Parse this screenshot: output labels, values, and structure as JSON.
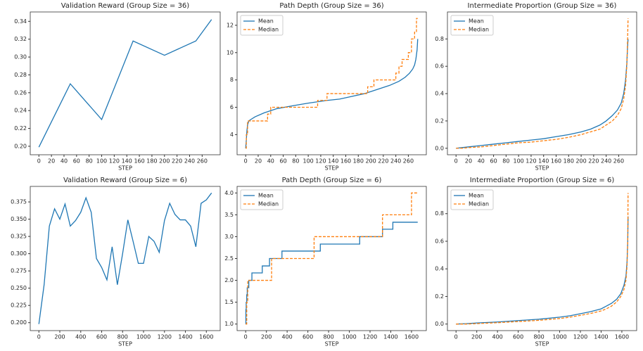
{
  "chart_data": [
    {
      "type": "line",
      "title": "Validation Reward (Group Size = 36)",
      "xlabel": "STEP",
      "x": [
        0,
        50,
        100,
        150,
        200,
        250,
        275
      ],
      "values": [
        0.199,
        0.27,
        0.23,
        0.318,
        0.302,
        0.318,
        0.342
      ],
      "color": "#1f77b4",
      "xlim": [
        -13.75,
        288.75
      ],
      "ylim": [
        0.1905,
        0.3505
      ],
      "xticks": [
        0,
        20,
        40,
        60,
        80,
        100,
        120,
        140,
        160,
        180,
        200,
        220,
        240,
        260
      ],
      "yticks": [
        {
          "value": 0.2,
          "label": "0.20"
        },
        {
          "value": 0.22,
          "label": "0.22"
        },
        {
          "value": 0.24,
          "label": "0.24"
        },
        {
          "value": 0.26,
          "label": "0.26"
        },
        {
          "value": 0.28,
          "label": "0.28"
        },
        {
          "value": 0.3,
          "label": "0.30"
        },
        {
          "value": 0.32,
          "label": "0.32"
        },
        {
          "value": 0.34,
          "label": "0.34"
        }
      ]
    },
    {
      "type": "line",
      "title": "Path Depth (Group Size = 36)",
      "xlabel": "STEP",
      "legend": "upper left",
      "series": [
        {
          "name": "Mean",
          "color": "#1f77b4",
          "linestyle": "solid",
          "x": [
            0,
            1,
            2,
            3,
            5,
            8,
            15,
            30,
            50,
            80,
            100,
            130,
            150,
            170,
            190,
            210,
            230,
            245,
            255,
            262,
            267,
            270,
            272,
            274,
            275
          ],
          "values": [
            3.0,
            3.6,
            4.3,
            4.7,
            5.0,
            5.1,
            5.3,
            5.6,
            5.9,
            6.15,
            6.3,
            6.5,
            6.6,
            6.8,
            7.0,
            7.3,
            7.6,
            7.9,
            8.2,
            8.5,
            8.8,
            9.1,
            9.5,
            10.2,
            11.0
          ]
        },
        {
          "name": "Median",
          "color": "#ff7f0e",
          "linestyle": "dashed",
          "x": [
            0,
            1,
            1,
            3,
            3,
            35,
            35,
            40,
            40,
            115,
            115,
            130,
            130,
            195,
            195,
            205,
            205,
            240,
            240,
            245,
            245,
            250,
            250,
            260,
            260,
            265,
            265,
            270,
            270,
            273,
            273,
            275
          ],
          "values": [
            3,
            3,
            4,
            4,
            5,
            5,
            5.5,
            5.5,
            6,
            6,
            6.5,
            6.5,
            7,
            7,
            7.5,
            7.5,
            8,
            8,
            8.5,
            8.5,
            9,
            9,
            9.5,
            9.5,
            10,
            10,
            11,
            11,
            11.5,
            11.5,
            12.5,
            12.5
          ]
        }
      ],
      "xlim": [
        -13.75,
        288.75
      ],
      "ylim": [
        2.525,
        12.975
      ],
      "xticks": [
        0,
        20,
        40,
        60,
        80,
        100,
        120,
        140,
        160,
        180,
        200,
        220,
        240,
        260
      ],
      "yticks": [
        4,
        6,
        8,
        10,
        12
      ]
    },
    {
      "type": "line",
      "title": "Intermediate Proportion (Group Size = 36)",
      "xlabel": "STEP",
      "legend": "upper left",
      "series": [
        {
          "name": "Mean",
          "color": "#1f77b4",
          "linestyle": "solid",
          "x": [
            0,
            10,
            20,
            40,
            60,
            80,
            100,
            120,
            140,
            160,
            180,
            200,
            215,
            230,
            240,
            250,
            258,
            264,
            268,
            271,
            273,
            274,
            275
          ],
          "values": [
            0.0,
            0.005,
            0.01,
            0.02,
            0.03,
            0.04,
            0.05,
            0.06,
            0.07,
            0.085,
            0.1,
            0.12,
            0.14,
            0.17,
            0.2,
            0.24,
            0.28,
            0.33,
            0.4,
            0.5,
            0.62,
            0.72,
            0.8
          ]
        },
        {
          "name": "Median",
          "color": "#ff7f0e",
          "linestyle": "dashed",
          "x": [
            0,
            10,
            20,
            40,
            60,
            80,
            100,
            120,
            140,
            160,
            180,
            200,
            215,
            230,
            240,
            250,
            258,
            264,
            268,
            271,
            273,
            274,
            275
          ],
          "values": [
            0.0,
            0.0,
            0.005,
            0.01,
            0.02,
            0.03,
            0.04,
            0.045,
            0.055,
            0.065,
            0.08,
            0.1,
            0.12,
            0.14,
            0.17,
            0.2,
            0.24,
            0.29,
            0.36,
            0.46,
            0.6,
            0.75,
            0.95
          ]
        }
      ],
      "xlim": [
        -13.75,
        288.75
      ],
      "ylim": [
        -0.0475,
        0.9975
      ],
      "xticks": [
        0,
        20,
        40,
        60,
        80,
        100,
        120,
        140,
        160,
        180,
        200,
        220,
        240,
        260
      ],
      "yticks": [
        {
          "value": 0,
          "label": "0.0"
        },
        {
          "value": 0.2,
          "label": "0.2"
        },
        {
          "value": 0.4,
          "label": "0.4"
        },
        {
          "value": 0.6,
          "label": "0.6"
        },
        {
          "value": 0.8,
          "label": "0.8"
        }
      ]
    },
    {
      "type": "line",
      "title": "Validation Reward (Group Size = 6)",
      "xlabel": "STEP",
      "x": [
        0,
        50,
        100,
        150,
        200,
        250,
        300,
        350,
        400,
        450,
        500,
        550,
        600,
        650,
        700,
        750,
        800,
        850,
        900,
        950,
        1000,
        1050,
        1100,
        1150,
        1200,
        1250,
        1300,
        1350,
        1400,
        1450,
        1500,
        1550,
        1600,
        1650
      ],
      "values": [
        0.198,
        0.255,
        0.34,
        0.365,
        0.35,
        0.372,
        0.34,
        0.348,
        0.36,
        0.381,
        0.36,
        0.293,
        0.28,
        0.262,
        0.31,
        0.255,
        0.3,
        0.349,
        0.318,
        0.286,
        0.286,
        0.325,
        0.318,
        0.302,
        0.348,
        0.373,
        0.357,
        0.349,
        0.349,
        0.34,
        0.31,
        0.373,
        0.378,
        0.388
      ],
      "color": "#1f77b4",
      "xlim": [
        -82.5,
        1732.5
      ],
      "ylim": [
        0.1885,
        0.3975
      ],
      "xticks": [
        0,
        200,
        400,
        600,
        800,
        1000,
        1200,
        1400,
        1600
      ],
      "yticks": [
        {
          "value": 0.2,
          "label": "0.200"
        },
        {
          "value": 0.225,
          "label": "0.225"
        },
        {
          "value": 0.25,
          "label": "0.250"
        },
        {
          "value": 0.275,
          "label": "0.275"
        },
        {
          "value": 0.3,
          "label": "0.300"
        },
        {
          "value": 0.325,
          "label": "0.325"
        },
        {
          "value": 0.35,
          "label": "0.350"
        },
        {
          "value": 0.375,
          "label": "0.375"
        }
      ]
    },
    {
      "type": "line",
      "title": "Path Depth (Group Size = 6)",
      "xlabel": "STEP",
      "legend": "upper left",
      "series": [
        {
          "name": "Mean",
          "color": "#1f77b4",
          "linestyle": "solid",
          "x": [
            0,
            2,
            2,
            5,
            5,
            10,
            10,
            15,
            15,
            30,
            30,
            60,
            60,
            160,
            160,
            230,
            230,
            350,
            350,
            720,
            720,
            1100,
            1100,
            1320,
            1320,
            1420,
            1420,
            1660
          ],
          "values": [
            1,
            1,
            1.33,
            1.33,
            1.5,
            1.5,
            1.67,
            1.67,
            1.83,
            1.83,
            2.0,
            2.0,
            2.17,
            2.17,
            2.33,
            2.33,
            2.5,
            2.5,
            2.67,
            2.67,
            2.83,
            2.83,
            3.0,
            3.0,
            3.17,
            3.17,
            3.33,
            3.33
          ]
        },
        {
          "name": "Median",
          "color": "#ff7f0e",
          "linestyle": "dashed",
          "x": [
            0,
            10,
            10,
            20,
            20,
            250,
            250,
            660,
            660,
            1320,
            1320,
            1600,
            1600,
            1660
          ],
          "values": [
            1,
            1,
            1.5,
            1.5,
            2,
            2,
            2.5,
            2.5,
            3,
            3,
            3.5,
            3.5,
            4,
            4
          ]
        }
      ],
      "xlim": [
        -83,
        1743
      ],
      "ylim": [
        0.85,
        4.15
      ],
      "xticks": [
        0,
        200,
        400,
        600,
        800,
        1000,
        1200,
        1400,
        1600
      ],
      "yticks": [
        {
          "value": 1,
          "label": "1.0"
        },
        {
          "value": 1.5,
          "label": "1.5"
        },
        {
          "value": 2,
          "label": "2.0"
        },
        {
          "value": 2.5,
          "label": "2.5"
        },
        {
          "value": 3,
          "label": "3.0"
        },
        {
          "value": 3.5,
          "label": "3.5"
        },
        {
          "value": 4,
          "label": "4.0"
        }
      ]
    },
    {
      "type": "line",
      "title": "Intermediate Proportion (Group Size = 6)",
      "xlabel": "STEP",
      "legend": "upper left",
      "series": [
        {
          "name": "Mean",
          "color": "#1f77b4",
          "linestyle": "solid",
          "x": [
            0,
            100,
            200,
            400,
            600,
            800,
            1000,
            1100,
            1200,
            1300,
            1400,
            1450,
            1500,
            1550,
            1590,
            1620,
            1640,
            1650,
            1657,
            1660
          ],
          "values": [
            0,
            0.003,
            0.008,
            0.015,
            0.025,
            0.035,
            0.05,
            0.06,
            0.075,
            0.09,
            0.11,
            0.13,
            0.15,
            0.18,
            0.22,
            0.28,
            0.35,
            0.45,
            0.6,
            0.78
          ]
        },
        {
          "name": "Median",
          "color": "#ff7f0e",
          "linestyle": "dashed",
          "x": [
            0,
            100,
            200,
            400,
            600,
            800,
            1000,
            1100,
            1200,
            1300,
            1400,
            1450,
            1500,
            1550,
            1590,
            1620,
            1640,
            1650,
            1657,
            1660
          ],
          "values": [
            0,
            0,
            0.003,
            0.01,
            0.018,
            0.027,
            0.04,
            0.05,
            0.063,
            0.077,
            0.095,
            0.11,
            0.13,
            0.16,
            0.2,
            0.25,
            0.32,
            0.42,
            0.6,
            0.95
          ]
        }
      ],
      "xlim": [
        -83,
        1743
      ],
      "ylim": [
        -0.0475,
        0.9975
      ],
      "xticks": [
        0,
        200,
        400,
        600,
        800,
        1000,
        1200,
        1400,
        1600
      ],
      "yticks": [
        {
          "value": 0,
          "label": "0.0"
        },
        {
          "value": 0.2,
          "label": "0.2"
        },
        {
          "value": 0.4,
          "label": "0.4"
        },
        {
          "value": 0.6,
          "label": "0.6"
        },
        {
          "value": 0.8,
          "label": "0.8"
        }
      ]
    }
  ]
}
